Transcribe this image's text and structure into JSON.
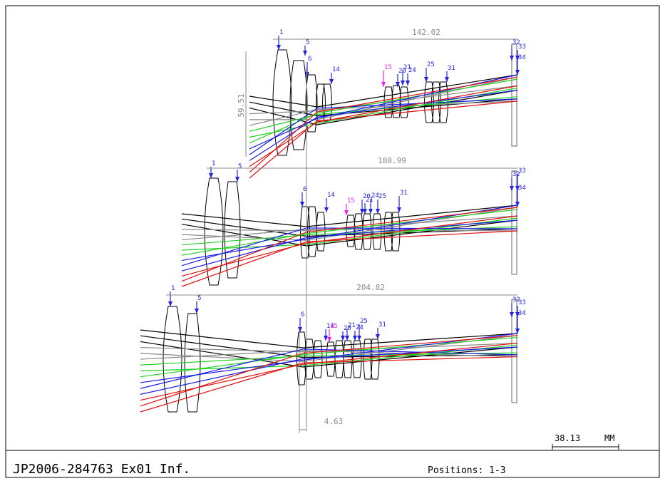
{
  "positions": [
    {
      "length": "142.02",
      "height": "59.51",
      "surfaces": [
        "1",
        "5",
        "6",
        "14",
        "15",
        "20",
        "21",
        "24",
        "25",
        "31",
        "32",
        "33",
        "34"
      ]
    },
    {
      "length": "180.99",
      "surfaces": [
        "1",
        "5",
        "6",
        "14",
        "15",
        "20",
        "21",
        "24",
        "25",
        "31",
        "32",
        "33",
        "34"
      ]
    },
    {
      "length": "204.82",
      "surfaces": [
        "1",
        "5",
        "6",
        "14",
        "15",
        "20",
        "21",
        "24",
        "25",
        "31",
        "32",
        "33",
        "34"
      ]
    }
  ],
  "shift": "4.63",
  "scale": {
    "value": "38.13",
    "unit": "MM"
  },
  "footer": {
    "title": "JP2006-284763 Ex01 Inf.",
    "positions": "Positions: 1-3"
  }
}
